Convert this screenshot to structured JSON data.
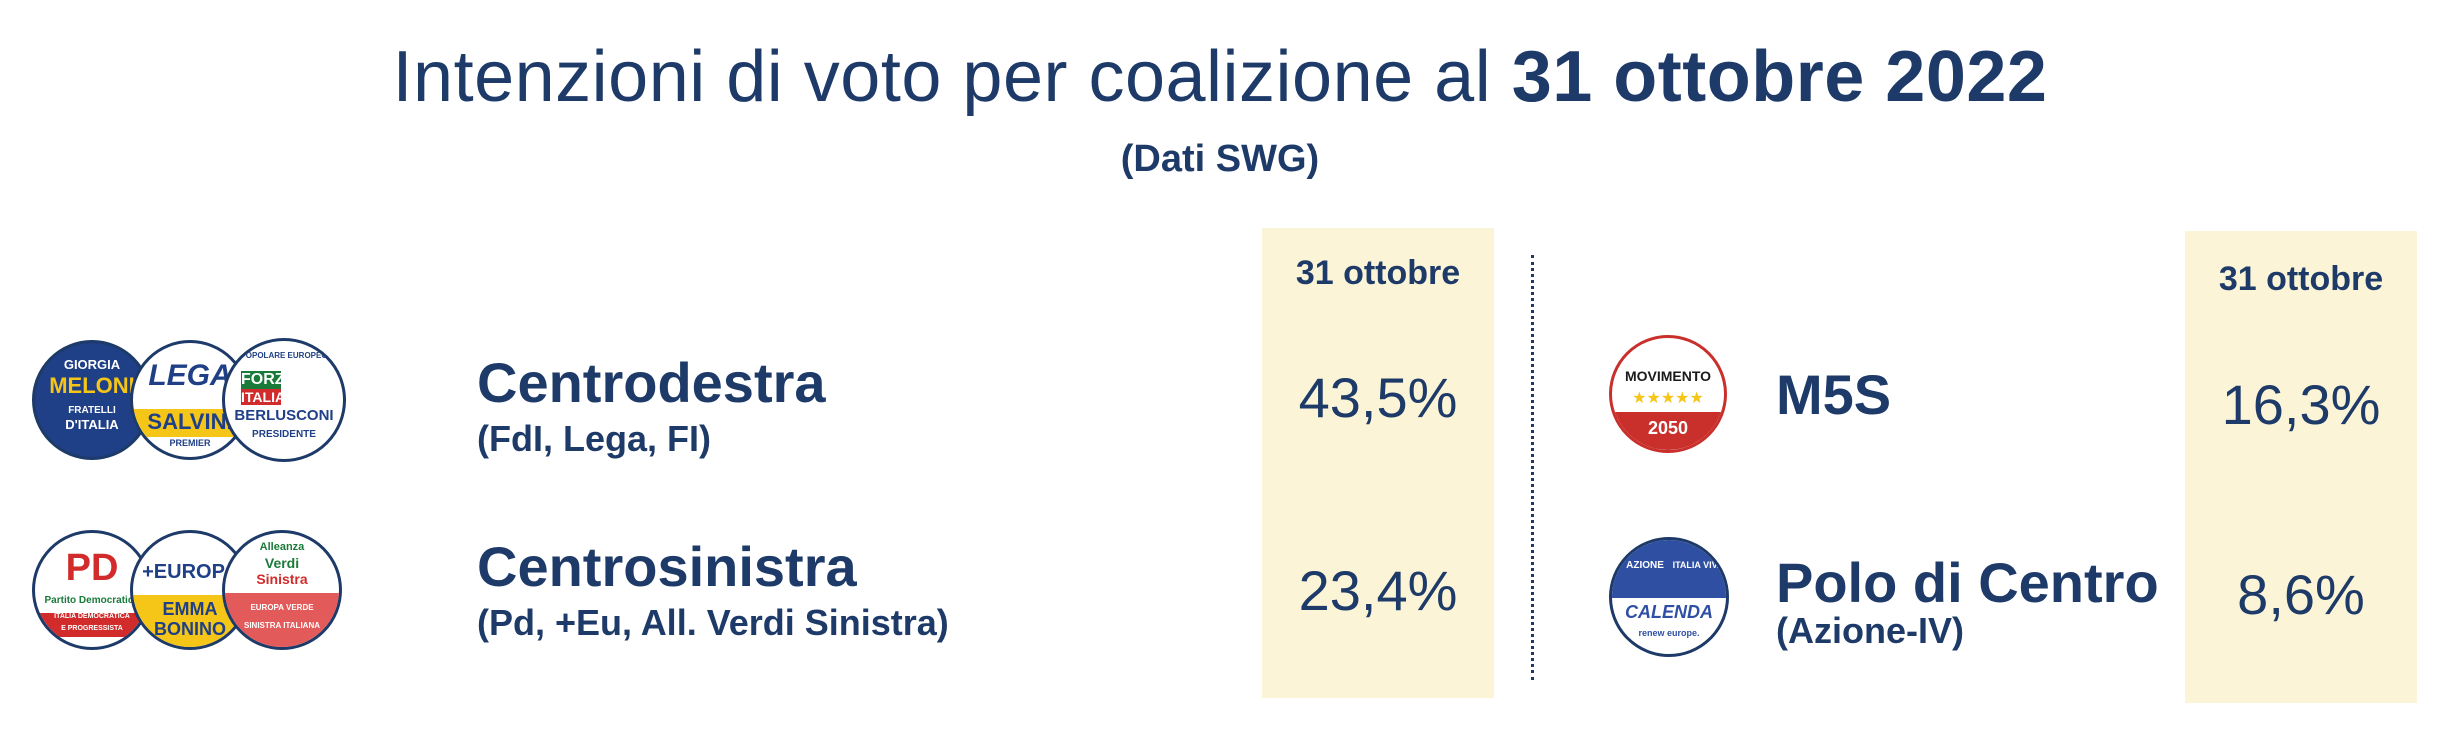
{
  "title": {
    "prefix": "Intenzioni di voto per coalizione al ",
    "date": "31 ottobre 2022"
  },
  "subtitle": "(Dati SWG)",
  "chart_data": {
    "type": "table",
    "column_header": "31 ottobre",
    "rows": [
      {
        "name": "Centrodestra",
        "parties": "(FdI, Lega, FI)",
        "value": 43.5,
        "label": "43,5%"
      },
      {
        "name": "Centrosinistra",
        "parties": "(Pd, +Eu, All. Verdi Sinistra)",
        "value": 23.4,
        "label": "23,4%"
      },
      {
        "name": "M5S",
        "parties": "",
        "value": 16.3,
        "label": "16,3%"
      },
      {
        "name": "Polo di Centro",
        "parties": "(Azione-IV)",
        "value": 8.6,
        "label": "8,6%"
      }
    ]
  },
  "logos": {
    "meloni": {
      "top": "GIORGIA",
      "mid": "MELONI",
      "bot1": "FRATELLI",
      "bot2": "D'ITALIA"
    },
    "lega": {
      "mid": "LEGA",
      "bot": "SALVINI",
      "bot2": "PREMIER"
    },
    "forza": {
      "top": "POPOLARE EUROPEO",
      "mid1": "FORZA",
      "mid2": "ITALIA",
      "mid3": "BERLUSCONI",
      "bot": "PRESIDENTE"
    },
    "pd": {
      "mid": "PD",
      "bot1": "Partito Democratico",
      "bot2": "ITALIA DEMOCRATICA",
      "bot3": "E PROGRESSISTA"
    },
    "europa": {
      "mid": "+EUROPA",
      "bot1": "EMMA",
      "bot2": "BONINO"
    },
    "avs": {
      "top1": "Alleanza",
      "top2": "Verdi",
      "top3": "Sinistra",
      "bot1": "EUROPA VERDE",
      "bot2": "SINISTRA ITALIANA"
    },
    "m5s": {
      "mid": "MOVIMENTO",
      "stars": "★★★★★",
      "bot": "2050"
    },
    "azione": {
      "top1": "AZIONE",
      "top2": "ITALIA VIVA",
      "mid": "CALENDA",
      "bot": "renew europe."
    }
  },
  "colors": {
    "text": "#1d3a68",
    "highlight": "#fbf4d6"
  }
}
